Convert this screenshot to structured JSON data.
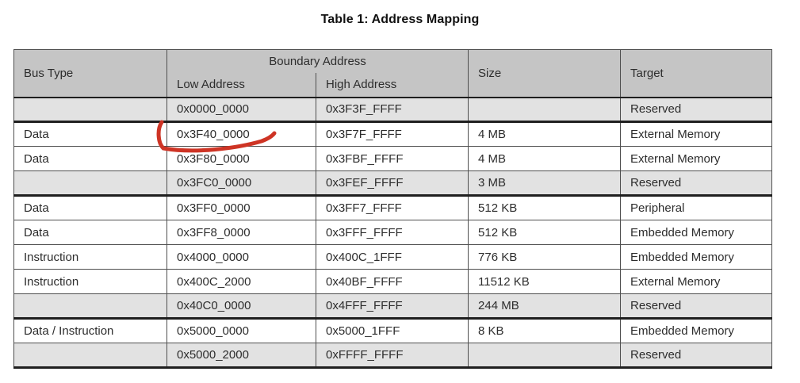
{
  "title": "Table 1: Address Mapping",
  "table": {
    "headers": {
      "bus_type": "Bus Type",
      "boundary_address": "Boundary Address",
      "low_address": "Low Address",
      "high_address": "High Address",
      "size": "Size",
      "target": "Target"
    },
    "rows": [
      {
        "bus_type": "",
        "low": "0x0000_0000",
        "high": "0x3F3F_FFFF",
        "size": "",
        "target": "Reserved",
        "shaded": true,
        "group_start": false
      },
      {
        "bus_type": "Data",
        "low": "0x3F40_0000",
        "high": "0x3F7F_FFFF",
        "size": "4 MB",
        "target": "External Memory",
        "shaded": false,
        "group_start": true
      },
      {
        "bus_type": "Data",
        "low": "0x3F80_0000",
        "high": "0x3FBF_FFFF",
        "size": "4 MB",
        "target": "External Memory",
        "shaded": false,
        "group_start": false
      },
      {
        "bus_type": "",
        "low": "0x3FC0_0000",
        "high": "0x3FEF_FFFF",
        "size": "3 MB",
        "target": "Reserved",
        "shaded": true,
        "group_start": false
      },
      {
        "bus_type": "Data",
        "low": "0x3FF0_0000",
        "high": "0x3FF7_FFFF",
        "size": "512 KB",
        "target": "Peripheral",
        "shaded": false,
        "group_start": true
      },
      {
        "bus_type": "Data",
        "low": "0x3FF8_0000",
        "high": "0x3FFF_FFFF",
        "size": "512 KB",
        "target": "Embedded Memory",
        "shaded": false,
        "group_start": false
      },
      {
        "bus_type": "Instruction",
        "low": "0x4000_0000",
        "high": "0x400C_1FFF",
        "size": "776 KB",
        "target": "Embedded Memory",
        "shaded": false,
        "group_start": false
      },
      {
        "bus_type": "Instruction",
        "low": "0x400C_2000",
        "high": "0x40BF_FFFF",
        "size": "11512 KB",
        "target": "External Memory",
        "shaded": false,
        "group_start": false
      },
      {
        "bus_type": "",
        "low": "0x40C0_0000",
        "high": "0x4FFF_FFFF",
        "size": "244 MB",
        "target": "Reserved",
        "shaded": true,
        "group_start": false
      },
      {
        "bus_type": "Data / Instruction",
        "low": "0x5000_0000",
        "high": "0x5000_1FFF",
        "size": "8 KB",
        "target": "Embedded Memory",
        "shaded": false,
        "group_start": true
      },
      {
        "bus_type": "",
        "low": "0x5000_2000",
        "high": "0xFFFF_FFFF",
        "size": "",
        "target": "Reserved",
        "shaded": true,
        "group_start": false
      }
    ]
  },
  "annotation": {
    "description": "hand-drawn red check-mark underline",
    "annotated_value": "0x3F40_0000",
    "color": "#ce3425"
  },
  "colors": {
    "header_bg": "#c5c5c5",
    "shaded_row_bg": "#e2e2e2",
    "text": "#2d2d2d",
    "thin_border": "#4f4f4f",
    "thick_border": "#1f1f1f"
  }
}
